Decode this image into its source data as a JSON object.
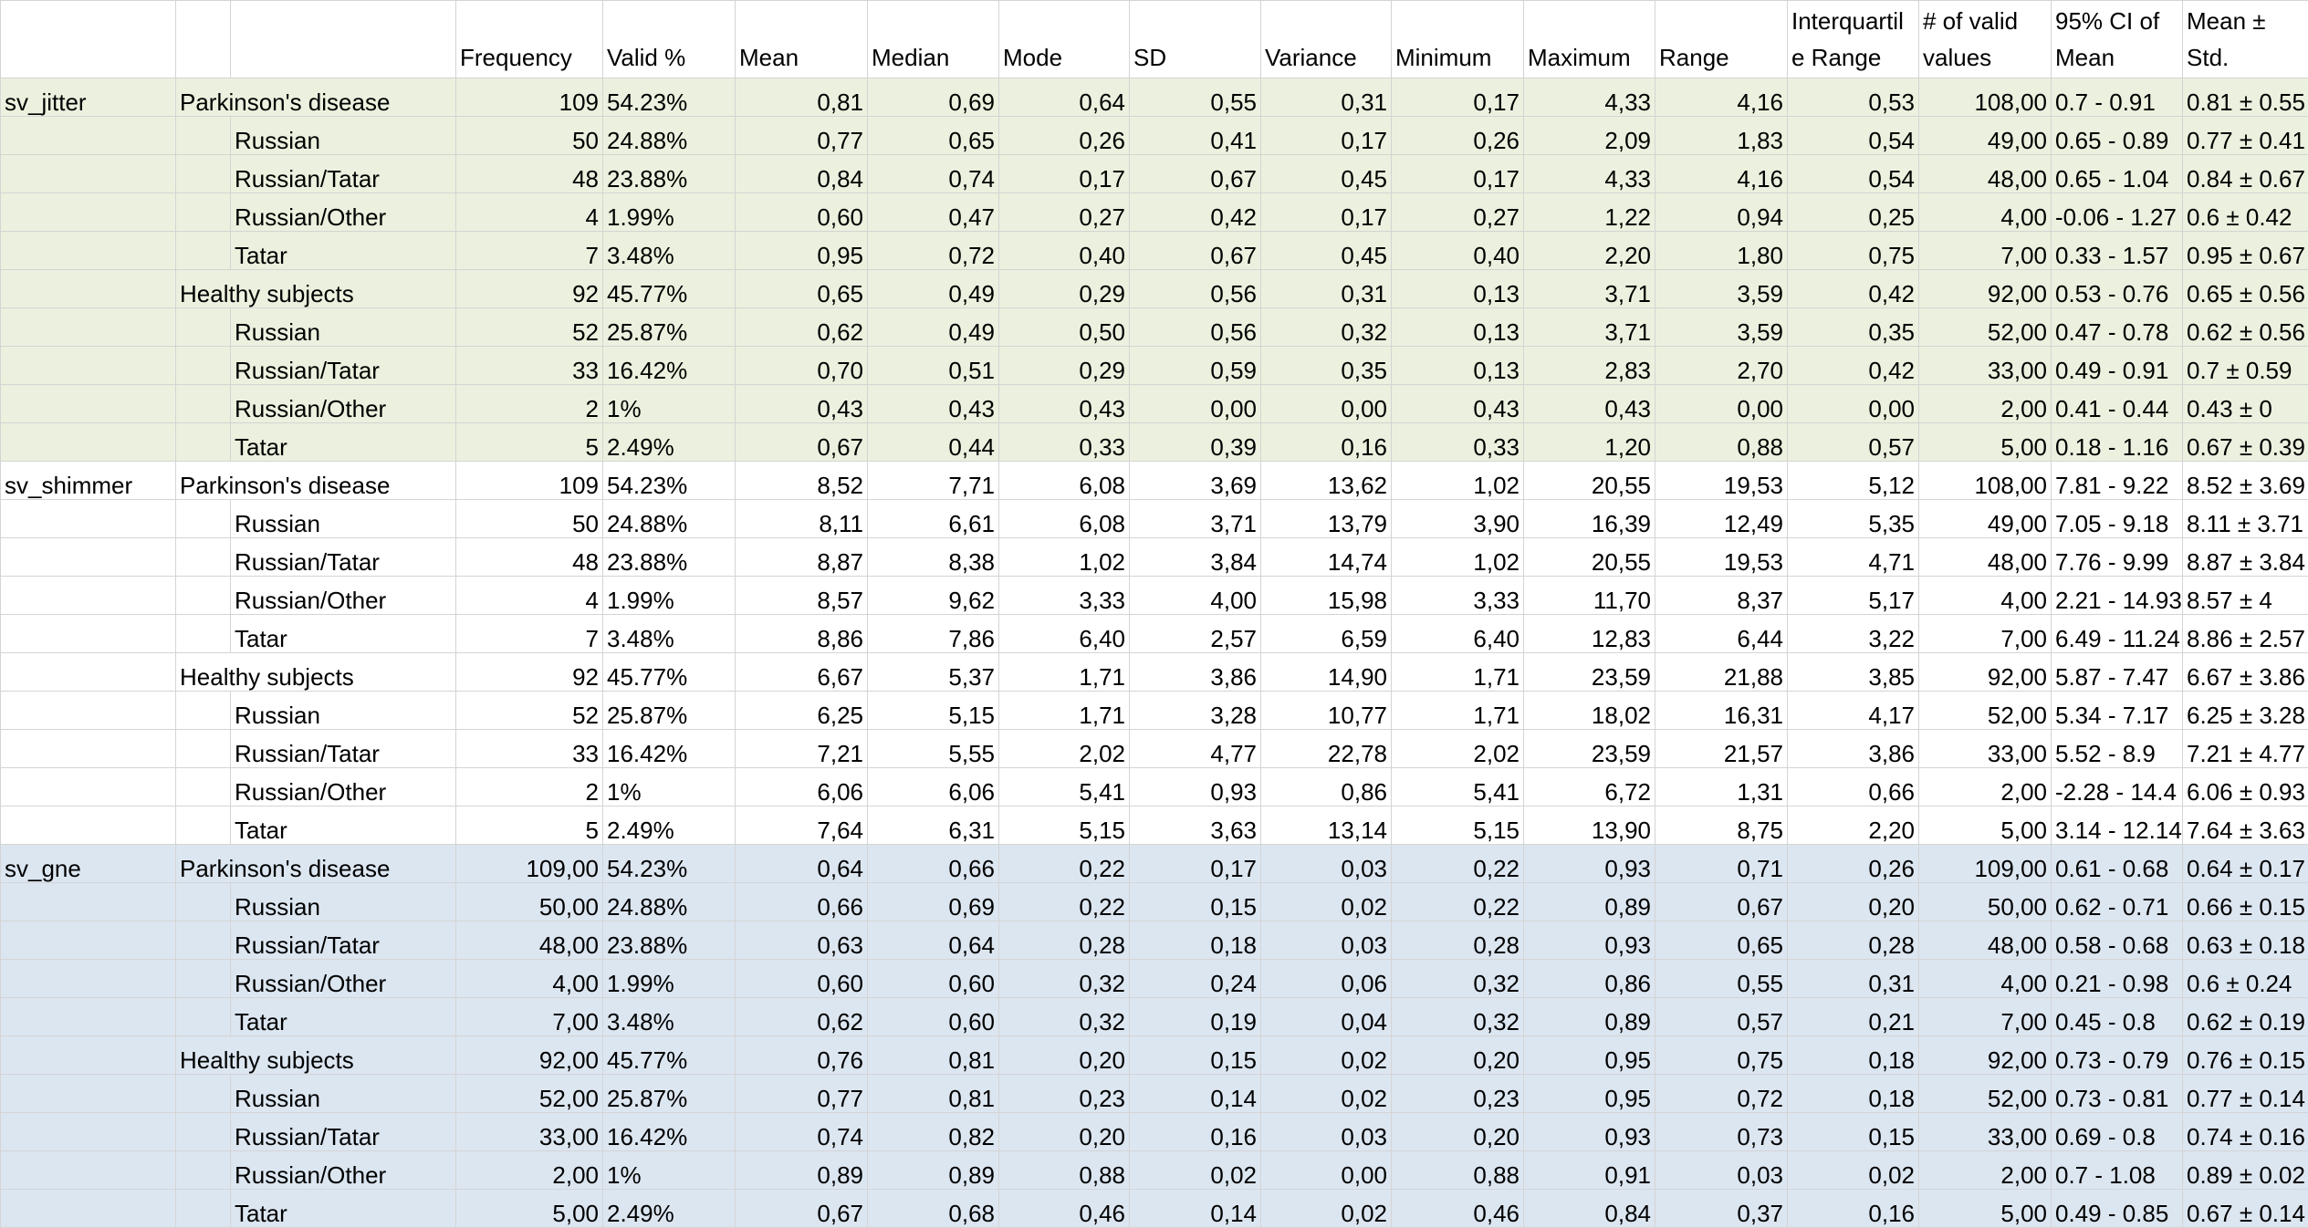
{
  "table": {
    "header": [
      "Frequency",
      "Valid %",
      "Mean",
      "Median",
      "Mode",
      "SD",
      "Variance",
      "Minimum",
      "Maximum",
      "Range",
      "Interquartile Range",
      "# of valid values",
      "95% CI of Mean",
      "Mean ± Std."
    ],
    "sections": [
      {
        "variable": "sv_jitter",
        "rows": [
          {
            "group": "Parkinson's disease",
            "cells": [
              "109",
              "54.23%",
              "0,81",
              "0,69",
              "0,64",
              "0,55",
              "0,31",
              "0,17",
              "4,33",
              "4,16",
              "0,53",
              "108,00",
              "0.7 - 0.91",
              "0.81 ± 0.55"
            ]
          },
          {
            "subgroup": "Russian",
            "cells": [
              "50",
              "24.88%",
              "0,77",
              "0,65",
              "0,26",
              "0,41",
              "0,17",
              "0,26",
              "2,09",
              "1,83",
              "0,54",
              "49,00",
              "0.65 - 0.89",
              "0.77 ± 0.41"
            ]
          },
          {
            "subgroup": "Russian/Tatar",
            "cells": [
              "48",
              "23.88%",
              "0,84",
              "0,74",
              "0,17",
              "0,67",
              "0,45",
              "0,17",
              "4,33",
              "4,16",
              "0,54",
              "48,00",
              "0.65 - 1.04",
              "0.84 ± 0.67"
            ]
          },
          {
            "subgroup": "Russian/Other",
            "cells": [
              "4",
              "1.99%",
              "0,60",
              "0,47",
              "0,27",
              "0,42",
              "0,17",
              "0,27",
              "1,22",
              "0,94",
              "0,25",
              "4,00",
              "-0.06 - 1.27",
              "0.6 ± 0.42"
            ]
          },
          {
            "subgroup": "Tatar",
            "cells": [
              "7",
              "3.48%",
              "0,95",
              "0,72",
              "0,40",
              "0,67",
              "0,45",
              "0,40",
              "2,20",
              "1,80",
              "0,75",
              "7,00",
              "0.33 - 1.57",
              "0.95 ± 0.67"
            ]
          },
          {
            "group": "Healthy subjects",
            "cells": [
              "92",
              "45.77%",
              "0,65",
              "0,49",
              "0,29",
              "0,56",
              "0,31",
              "0,13",
              "3,71",
              "3,59",
              "0,42",
              "92,00",
              "0.53 - 0.76",
              "0.65 ± 0.56"
            ]
          },
          {
            "subgroup": "Russian",
            "cells": [
              "52",
              "25.87%",
              "0,62",
              "0,49",
              "0,50",
              "0,56",
              "0,32",
              "0,13",
              "3,71",
              "3,59",
              "0,35",
              "52,00",
              "0.47 - 0.78",
              "0.62 ± 0.56"
            ]
          },
          {
            "subgroup": "Russian/Tatar",
            "cells": [
              "33",
              "16.42%",
              "0,70",
              "0,51",
              "0,29",
              "0,59",
              "0,35",
              "0,13",
              "2,83",
              "2,70",
              "0,42",
              "33,00",
              "0.49 - 0.91",
              "0.7 ± 0.59"
            ]
          },
          {
            "subgroup": "Russian/Other",
            "cells": [
              "2",
              "1%",
              "0,43",
              "0,43",
              "0,43",
              "0,00",
              "0,00",
              "0,43",
              "0,43",
              "0,00",
              "0,00",
              "2,00",
              "0.41 - 0.44",
              "0.43 ± 0"
            ]
          },
          {
            "subgroup": "Tatar",
            "cells": [
              "5",
              "2.49%",
              "0,67",
              "0,44",
              "0,33",
              "0,39",
              "0,16",
              "0,33",
              "1,20",
              "0,88",
              "0,57",
              "5,00",
              "0.18 - 1.16",
              "0.67 ± 0.39"
            ]
          }
        ]
      },
      {
        "variable": "sv_shimmer",
        "rows": [
          {
            "group": "Parkinson's disease",
            "cells": [
              "109",
              "54.23%",
              "8,52",
              "7,71",
              "6,08",
              "3,69",
              "13,62",
              "1,02",
              "20,55",
              "19,53",
              "5,12",
              "108,00",
              "7.81 - 9.22",
              "8.52 ± 3.69"
            ]
          },
          {
            "subgroup": "Russian",
            "cells": [
              "50",
              "24.88%",
              "8,11",
              "6,61",
              "6,08",
              "3,71",
              "13,79",
              "3,90",
              "16,39",
              "12,49",
              "5,35",
              "49,00",
              "7.05 - 9.18",
              "8.11 ± 3.71"
            ]
          },
          {
            "subgroup": "Russian/Tatar",
            "cells": [
              "48",
              "23.88%",
              "8,87",
              "8,38",
              "1,02",
              "3,84",
              "14,74",
              "1,02",
              "20,55",
              "19,53",
              "4,71",
              "48,00",
              "7.76 - 9.99",
              "8.87 ± 3.84"
            ]
          },
          {
            "subgroup": "Russian/Other",
            "cells": [
              "4",
              "1.99%",
              "8,57",
              "9,62",
              "3,33",
              "4,00",
              "15,98",
              "3,33",
              "11,70",
              "8,37",
              "5,17",
              "4,00",
              "2.21 - 14.93",
              "8.57 ± 4"
            ]
          },
          {
            "subgroup": "Tatar",
            "cells": [
              "7",
              "3.48%",
              "8,86",
              "7,86",
              "6,40",
              "2,57",
              "6,59",
              "6,40",
              "12,83",
              "6,44",
              "3,22",
              "7,00",
              "6.49 - 11.24",
              "8.86 ± 2.57"
            ]
          },
          {
            "group": "Healthy subjects",
            "cells": [
              "92",
              "45.77%",
              "6,67",
              "5,37",
              "1,71",
              "3,86",
              "14,90",
              "1,71",
              "23,59",
              "21,88",
              "3,85",
              "92,00",
              "5.87 - 7.47",
              "6.67 ± 3.86"
            ]
          },
          {
            "subgroup": "Russian",
            "cells": [
              "52",
              "25.87%",
              "6,25",
              "5,15",
              "1,71",
              "3,28",
              "10,77",
              "1,71",
              "18,02",
              "16,31",
              "4,17",
              "52,00",
              "5.34 - 7.17",
              "6.25 ± 3.28"
            ]
          },
          {
            "subgroup": "Russian/Tatar",
            "cells": [
              "33",
              "16.42%",
              "7,21",
              "5,55",
              "2,02",
              "4,77",
              "22,78",
              "2,02",
              "23,59",
              "21,57",
              "3,86",
              "33,00",
              "5.52 - 8.9",
              "7.21 ± 4.77"
            ]
          },
          {
            "subgroup": "Russian/Other",
            "cells": [
              "2",
              "1%",
              "6,06",
              "6,06",
              "5,41",
              "0,93",
              "0,86",
              "5,41",
              "6,72",
              "1,31",
              "0,66",
              "2,00",
              "-2.28 - 14.4",
              "6.06 ± 0.93"
            ]
          },
          {
            "subgroup": "Tatar",
            "cells": [
              "5",
              "2.49%",
              "7,64",
              "6,31",
              "5,15",
              "3,63",
              "13,14",
              "5,15",
              "13,90",
              "8,75",
              "2,20",
              "5,00",
              "3.14 - 12.14",
              "7.64 ± 3.63"
            ]
          }
        ]
      },
      {
        "variable": "sv_gne",
        "rows": [
          {
            "group": "Parkinson's disease",
            "cells": [
              "109,00",
              "54.23%",
              "0,64",
              "0,66",
              "0,22",
              "0,17",
              "0,03",
              "0,22",
              "0,93",
              "0,71",
              "0,26",
              "109,00",
              "0.61 - 0.68",
              "0.64 ± 0.17"
            ]
          },
          {
            "subgroup": "Russian",
            "cells": [
              "50,00",
              "24.88%",
              "0,66",
              "0,69",
              "0,22",
              "0,15",
              "0,02",
              "0,22",
              "0,89",
              "0,67",
              "0,20",
              "50,00",
              "0.62 - 0.71",
              "0.66 ± 0.15"
            ]
          },
          {
            "subgroup": "Russian/Tatar",
            "cells": [
              "48,00",
              "23.88%",
              "0,63",
              "0,64",
              "0,28",
              "0,18",
              "0,03",
              "0,28",
              "0,93",
              "0,65",
              "0,28",
              "48,00",
              "0.58 - 0.68",
              "0.63 ± 0.18"
            ]
          },
          {
            "subgroup": "Russian/Other",
            "cells": [
              "4,00",
              "1.99%",
              "0,60",
              "0,60",
              "0,32",
              "0,24",
              "0,06",
              "0,32",
              "0,86",
              "0,55",
              "0,31",
              "4,00",
              "0.21 - 0.98",
              "0.6 ± 0.24"
            ]
          },
          {
            "subgroup": "Tatar",
            "cells": [
              "7,00",
              "3.48%",
              "0,62",
              "0,60",
              "0,32",
              "0,19",
              "0,04",
              "0,32",
              "0,89",
              "0,57",
              "0,21",
              "7,00",
              "0.45 - 0.8",
              "0.62 ± 0.19"
            ]
          },
          {
            "group": "Healthy subjects",
            "cells": [
              "92,00",
              "45.77%",
              "0,76",
              "0,81",
              "0,20",
              "0,15",
              "0,02",
              "0,20",
              "0,95",
              "0,75",
              "0,18",
              "92,00",
              "0.73 - 0.79",
              "0.76 ± 0.15"
            ]
          },
          {
            "subgroup": "Russian",
            "cells": [
              "52,00",
              "25.87%",
              "0,77",
              "0,81",
              "0,23",
              "0,14",
              "0,02",
              "0,23",
              "0,95",
              "0,72",
              "0,18",
              "52,00",
              "0.73 - 0.81",
              "0.77 ± 0.14"
            ]
          },
          {
            "subgroup": "Russian/Tatar",
            "cells": [
              "33,00",
              "16.42%",
              "0,74",
              "0,82",
              "0,20",
              "0,16",
              "0,03",
              "0,20",
              "0,93",
              "0,73",
              "0,15",
              "33,00",
              "0.69 - 0.8",
              "0.74 ± 0.16"
            ]
          },
          {
            "subgroup": "Russian/Other",
            "cells": [
              "2,00",
              "1%",
              "0,89",
              "0,89",
              "0,88",
              "0,02",
              "0,00",
              "0,88",
              "0,91",
              "0,03",
              "0,02",
              "2,00",
              "0.7 - 1.08",
              "0.89 ± 0.02"
            ]
          },
          {
            "subgroup": "Tatar",
            "cells": [
              "5,00",
              "2.49%",
              "0,67",
              "0,68",
              "0,46",
              "0,14",
              "0,02",
              "0,46",
              "0,84",
              "0,37",
              "0,16",
              "5,00",
              "0.49 - 0.85",
              "0.67 ± 0.14"
            ]
          }
        ]
      }
    ]
  }
}
